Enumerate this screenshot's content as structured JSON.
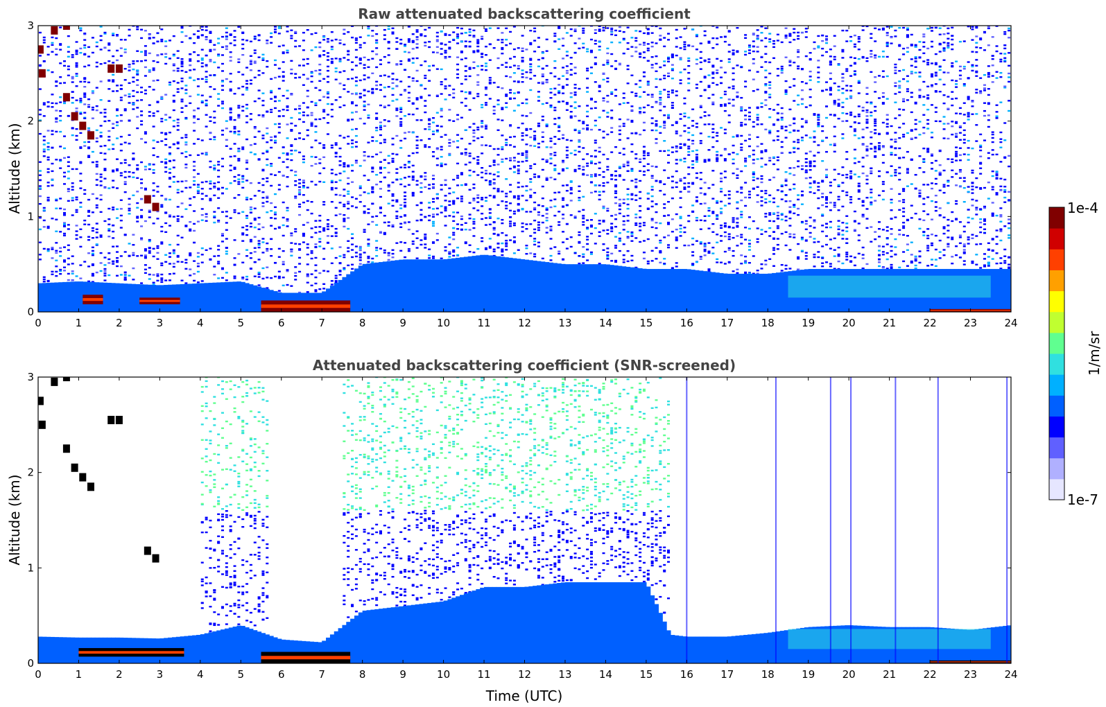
{
  "chart_data": [
    {
      "type": "heatmap",
      "title": "Raw attenuated backscattering coefficient",
      "xlabel": "",
      "ylabel": "Altitude (km)",
      "xlim": [
        0,
        24
      ],
      "ylim": [
        0,
        3
      ],
      "x_ticks": [
        "0",
        "1",
        "2",
        "3",
        "4",
        "5",
        "6",
        "7",
        "8",
        "9",
        "10",
        "11",
        "12",
        "13",
        "14",
        "15",
        "16",
        "17",
        "18",
        "19",
        "20",
        "21",
        "22",
        "23",
        "24"
      ],
      "y_ticks": [
        "0",
        "1",
        "2",
        "3"
      ],
      "x_tick_values": [
        0,
        1,
        2,
        3,
        4,
        5,
        6,
        7,
        8,
        9,
        10,
        11,
        12,
        13,
        14,
        15,
        16,
        17,
        18,
        19,
        20,
        21,
        22,
        23,
        24
      ],
      "y_tick_values": [
        0,
        1,
        2,
        3
      ],
      "features": {
        "near_surface_layer_top_km": [
          [
            0,
            0.3
          ],
          [
            1,
            0.32
          ],
          [
            2,
            0.3
          ],
          [
            3,
            0.28
          ],
          [
            4,
            0.3
          ],
          [
            5,
            0.32
          ],
          [
            6,
            0.2
          ],
          [
            7,
            0.2
          ],
          [
            8,
            0.5
          ],
          [
            9,
            0.55
          ],
          [
            10,
            0.55
          ],
          [
            11,
            0.6
          ],
          [
            12,
            0.55
          ],
          [
            13,
            0.5
          ],
          [
            14,
            0.5
          ],
          [
            15,
            0.45
          ],
          [
            16,
            0.45
          ],
          [
            17,
            0.4
          ],
          [
            18,
            0.4
          ],
          [
            19,
            0.45
          ],
          [
            20,
            0.45
          ],
          [
            21,
            0.45
          ],
          [
            22,
            0.45
          ],
          [
            23,
            0.45
          ],
          [
            24,
            0.45
          ]
        ],
        "strong_layers": [
          {
            "t0": 1.1,
            "t1": 1.6,
            "z0": 0.08,
            "z1": 0.18
          },
          {
            "t0": 2.5,
            "t1": 3.5,
            "z0": 0.08,
            "z1": 0.15
          },
          {
            "t0": 5.5,
            "t1": 7.7,
            "z0": 0.0,
            "z1": 0.12
          },
          {
            "t0": 22.0,
            "t1": 24.0,
            "z0": 0.0,
            "z1": 0.03
          }
        ],
        "elevated_cloud": [
          [
            0.05,
            2.75
          ],
          [
            0.1,
            2.5
          ],
          [
            0.4,
            2.95
          ],
          [
            0.7,
            3.0
          ],
          [
            0.7,
            2.25
          ],
          [
            0.9,
            2.05
          ],
          [
            1.1,
            1.95
          ],
          [
            1.3,
            1.85
          ],
          [
            1.8,
            2.55
          ],
          [
            2.0,
            2.55
          ],
          [
            2.7,
            1.18
          ],
          [
            2.9,
            1.1
          ]
        ],
        "aerosol_lens_km": {
          "t0": 18.5,
          "t1": 23.5,
          "z0": 0.15,
          "z1": 0.38
        }
      }
    },
    {
      "type": "heatmap",
      "title": "Attenuated backscattering coefficient (SNR-screened)",
      "xlabel": "Time (UTC)",
      "ylabel": "Altitude (km)",
      "xlim": [
        0,
        24
      ],
      "ylim": [
        0,
        3
      ],
      "x_ticks": [
        "0",
        "1",
        "2",
        "3",
        "4",
        "5",
        "6",
        "7",
        "8",
        "9",
        "10",
        "11",
        "12",
        "13",
        "14",
        "15",
        "16",
        "17",
        "18",
        "19",
        "20",
        "21",
        "22",
        "23",
        "24"
      ],
      "y_ticks": [
        "0",
        "1",
        "2",
        "3"
      ],
      "x_tick_values": [
        0,
        1,
        2,
        3,
        4,
        5,
        6,
        7,
        8,
        9,
        10,
        11,
        12,
        13,
        14,
        15,
        16,
        17,
        18,
        19,
        20,
        21,
        22,
        23,
        24
      ],
      "y_tick_values": [
        0,
        1,
        2,
        3
      ],
      "features": {
        "near_surface_layer_top_km": [
          [
            0,
            0.28
          ],
          [
            1,
            0.27
          ],
          [
            2,
            0.27
          ],
          [
            3,
            0.26
          ],
          [
            4,
            0.3
          ],
          [
            5,
            0.4
          ],
          [
            6,
            0.25
          ],
          [
            7,
            0.22
          ],
          [
            8,
            0.55
          ],
          [
            9,
            0.6
          ],
          [
            10,
            0.65
          ],
          [
            11,
            0.8
          ],
          [
            12,
            0.8
          ],
          [
            13,
            0.85
          ],
          [
            14,
            0.85
          ],
          [
            15,
            0.85
          ],
          [
            15.6,
            0.3
          ],
          [
            16,
            0.28
          ],
          [
            17,
            0.28
          ],
          [
            18,
            0.32
          ],
          [
            19,
            0.38
          ],
          [
            20,
            0.4
          ],
          [
            21,
            0.38
          ],
          [
            22,
            0.38
          ],
          [
            23,
            0.35
          ],
          [
            24,
            0.4
          ]
        ],
        "noise_region_top_km": [
          [
            4.0,
            3.0
          ],
          [
            5.7,
            3.0
          ],
          [
            7.5,
            3.0
          ],
          [
            15.6,
            3.0
          ]
        ],
        "strong_layers": [
          {
            "t0": 1.0,
            "t1": 3.6,
            "z0": 0.07,
            "z1": 0.16
          },
          {
            "t0": 5.5,
            "t1": 7.7,
            "z0": 0.0,
            "z1": 0.12
          },
          {
            "t0": 22.0,
            "t1": 24.0,
            "z0": 0.0,
            "z1": 0.03
          }
        ],
        "elevated_cloud": [
          [
            0.05,
            2.75
          ],
          [
            0.1,
            2.5
          ],
          [
            0.4,
            2.95
          ],
          [
            0.7,
            3.0
          ],
          [
            0.7,
            2.25
          ],
          [
            0.9,
            2.05
          ],
          [
            1.1,
            1.95
          ],
          [
            1.3,
            1.85
          ],
          [
            1.8,
            2.55
          ],
          [
            2.0,
            2.55
          ],
          [
            2.7,
            1.18
          ],
          [
            2.9,
            1.1
          ]
        ],
        "aerosol_lens_km": {
          "t0": 18.5,
          "t1": 23.5,
          "z0": 0.15,
          "z1": 0.36
        },
        "vertical_spikes_t": [
          16.0,
          18.2,
          19.55,
          20.05,
          21.15,
          22.2,
          23.9
        ]
      }
    }
  ],
  "colorbar": {
    "label": "1/m/sr",
    "max_label": "1e-4",
    "min_label": "1e-7",
    "scale": "log",
    "colors": [
      "#e6e6ff",
      "#b0b0ff",
      "#6060ff",
      "#0000ff",
      "#0060ff",
      "#00b0ff",
      "#30e0e0",
      "#60ff90",
      "#c0ff30",
      "#ffff00",
      "#ffa000",
      "#ff4000",
      "#d00000",
      "#800000"
    ]
  },
  "colors": {
    "title": "#444444",
    "axis": "#000000",
    "background": "#ffffff"
  }
}
